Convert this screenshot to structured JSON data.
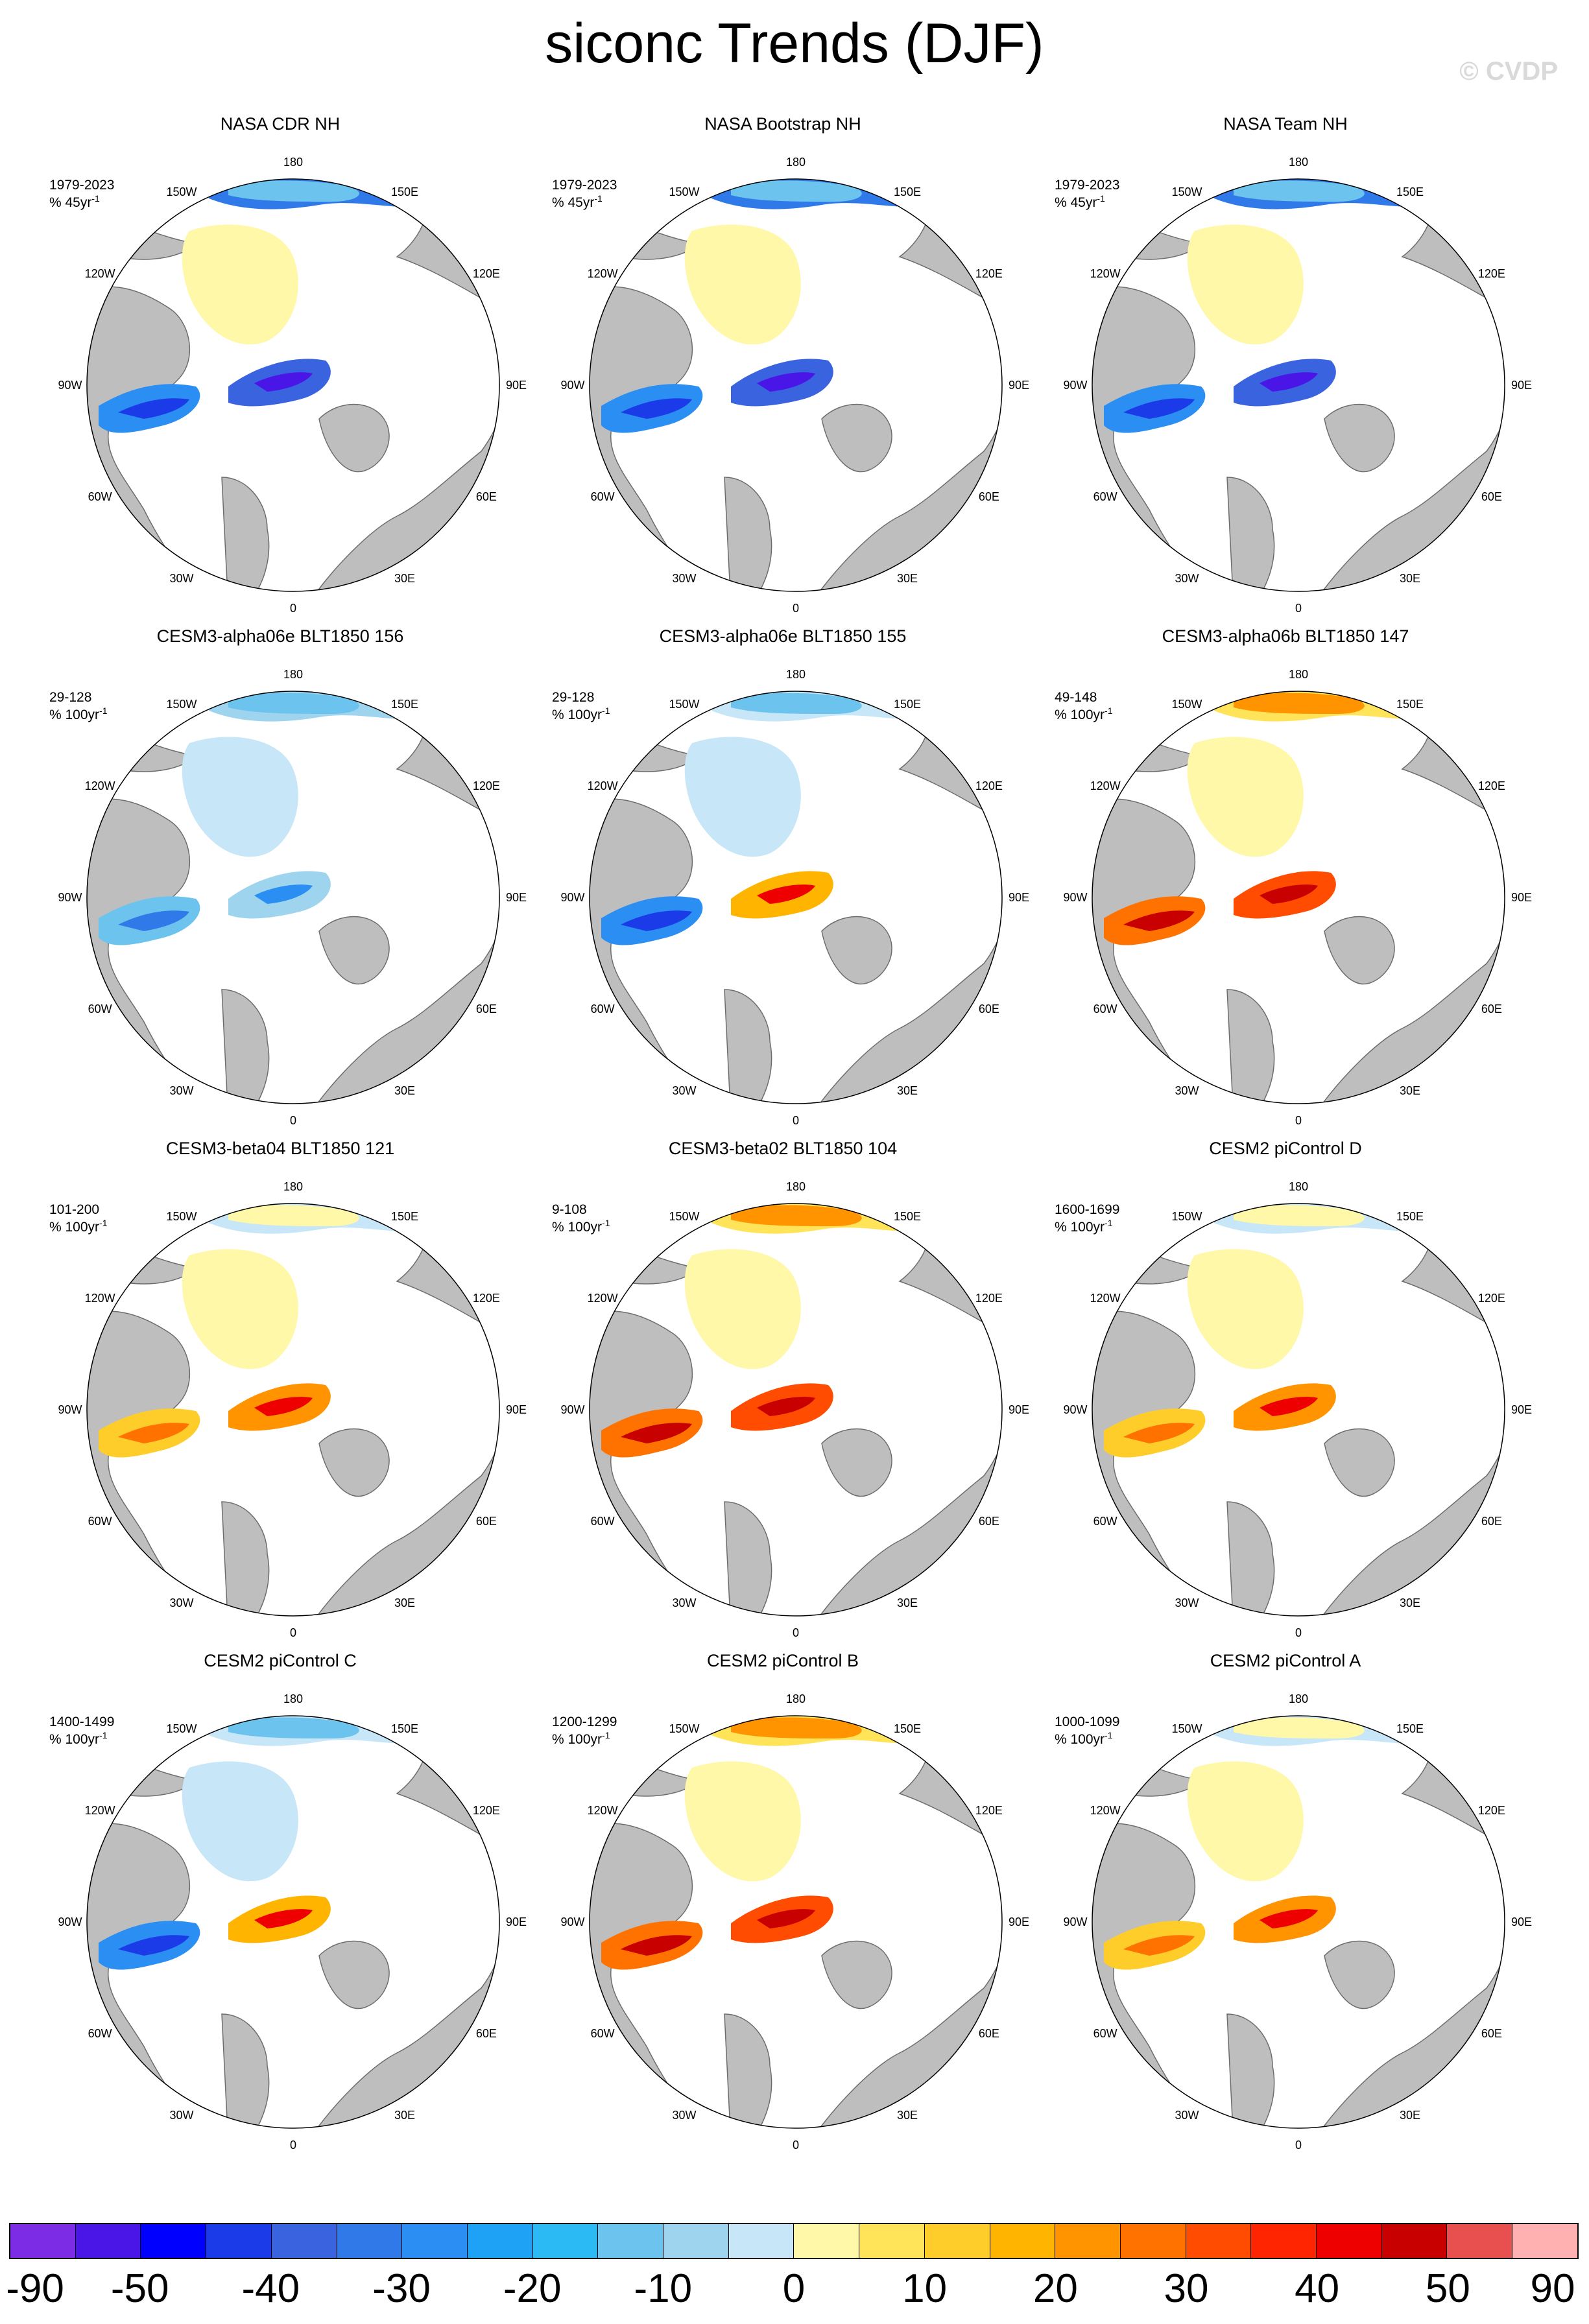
{
  "title": "siconc Trends (DJF)",
  "watermark": "© CVDP",
  "map_labels": {
    "top": "180",
    "bottom": "0",
    "upper_left": "150W",
    "upper_right": "150E",
    "left_upper": "120W",
    "right_upper": "120E",
    "left": "90W",
    "right": "90E",
    "left_lower": "60W",
    "right_lower": "60E",
    "lower_left": "30W",
    "lower_right": "30E"
  },
  "panels": [
    {
      "title": "NASA CDR NH",
      "period": "1979-2023",
      "units": "% 45yr",
      "units_sup": "-1",
      "pattern": "obs"
    },
    {
      "title": "NASA Bootstrap NH",
      "period": "1979-2023",
      "units": "% 45yr",
      "units_sup": "-1",
      "pattern": "obs"
    },
    {
      "title": "NASA Team NH",
      "period": "1979-2023",
      "units": "% 45yr",
      "units_sup": "-1",
      "pattern": "obs"
    },
    {
      "title": "CESM3-alpha06e BLT1850 156",
      "period": "29-128",
      "units": "% 100yr",
      "units_sup": "-1",
      "pattern": "neg"
    },
    {
      "title": "CESM3-alpha06e BLT1850 155",
      "period": "29-128",
      "units": "% 100yr",
      "units_sup": "-1",
      "pattern": "mixneg"
    },
    {
      "title": "CESM3-alpha06b BLT1850 147",
      "period": "49-148",
      "units": "% 100yr",
      "units_sup": "-1",
      "pattern": "pos"
    },
    {
      "title": "CESM3-beta04 BLT1850 121",
      "period": "101-200",
      "units": "% 100yr",
      "units_sup": "-1",
      "pattern": "mixpos"
    },
    {
      "title": "CESM3-beta02 BLT1850 104",
      "period": "9-108",
      "units": "% 100yr",
      "units_sup": "-1",
      "pattern": "pos"
    },
    {
      "title": "CESM2 piControl D",
      "period": "1600-1699",
      "units": "% 100yr",
      "units_sup": "-1",
      "pattern": "mixpos"
    },
    {
      "title": "CESM2 piControl C",
      "period": "1400-1499",
      "units": "% 100yr",
      "units_sup": "-1",
      "pattern": "mixneg"
    },
    {
      "title": "CESM2 piControl B",
      "period": "1200-1299",
      "units": "% 100yr",
      "units_sup": "-1",
      "pattern": "pos"
    },
    {
      "title": "CESM2 piControl A",
      "period": "1000-1099",
      "units": "% 100yr",
      "units_sup": "-1",
      "pattern": "mixpos"
    }
  ],
  "colorbar": {
    "colors": [
      "#7d2ce6",
      "#4a16e8",
      "#0000ff",
      "#1c3be8",
      "#3a63e0",
      "#2f7ae8",
      "#2a8ef2",
      "#1da2f5",
      "#2cbaf5",
      "#6cc4ee",
      "#9fd4ef",
      "#c7e6f7",
      "#fff8a8",
      "#ffe45a",
      "#ffcd2a",
      "#ffb400",
      "#ff9400",
      "#ff7200",
      "#ff4c00",
      "#ff2500",
      "#ee0000",
      "#c80000",
      "#e85050",
      "#ffb0b0"
    ],
    "labels": [
      "-90",
      "-50",
      "-40",
      "-30",
      "-20",
      "-10",
      "0",
      "10",
      "20",
      "30",
      "40",
      "50",
      "90"
    ]
  }
}
